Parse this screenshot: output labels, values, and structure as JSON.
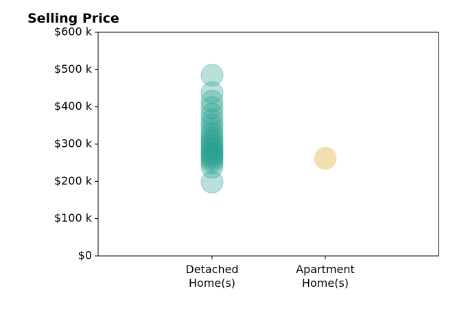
{
  "chart_data": {
    "type": "scatter",
    "title": "Selling Price",
    "xlabel": "",
    "ylabel": "",
    "categories": [
      "Detached\nHome(s)",
      "Apartment\nHome(s)"
    ],
    "ylim": [
      0,
      600000
    ],
    "y_ticks": [
      0,
      100000,
      200000,
      300000,
      400000,
      500000,
      600000
    ],
    "y_tick_labels": [
      "$0",
      "$100 k",
      "$200 k",
      "$300 k",
      "$400 k",
      "$500 k",
      "$600 k"
    ],
    "grid": false,
    "legend": "none",
    "series": [
      {
        "category": "Detached\nHome(s)",
        "color": "#26a08e",
        "values": [
          485000,
          438000,
          415000,
          398000,
          380000,
          365000,
          352000,
          340000,
          328000,
          318000,
          310000,
          302000,
          295000,
          288000,
          282000,
          276000,
          270000,
          264000,
          258000,
          250000,
          238000,
          198000
        ]
      },
      {
        "category": "Apartment\nHome(s)",
        "color": "#f0d9a0",
        "values": [
          263000,
          261000
        ]
      }
    ]
  }
}
